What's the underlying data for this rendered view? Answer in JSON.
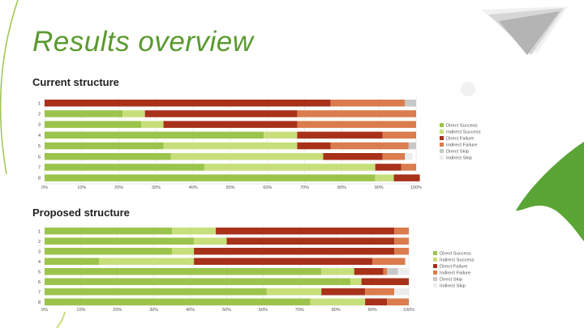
{
  "slide": {
    "title": "Results overview"
  },
  "colors": {
    "direct_success": "#9cc44c",
    "indirect_success": "#c7df7b",
    "direct_failure": "#a8311a",
    "indirect_failure": "#da7c4d",
    "direct_skip": "#c8c8c8",
    "indirect_skip": "#ececec",
    "accent_green": "#5a9a2e"
  },
  "chart_data": [
    {
      "type": "bar",
      "orientation": "horizontal",
      "stacked": true,
      "title": "Current structure",
      "categories": [
        "1",
        "2",
        "3",
        "4",
        "5",
        "6",
        "7",
        "8"
      ],
      "xlim": [
        0,
        100
      ],
      "x_ticks": [
        "0%",
        "10%",
        "20%",
        "30%",
        "40%",
        "50%",
        "60%",
        "70%",
        "80%",
        "90%",
        "100%"
      ],
      "grid": true,
      "legend": "right",
      "series": [
        {
          "name": "Direct Success",
          "values": [
            0,
            21,
            26,
            59,
            32,
            34,
            43,
            89
          ]
        },
        {
          "name": "Indirect Success",
          "values": [
            0,
            6,
            6,
            9,
            36,
            41,
            46,
            5
          ]
        },
        {
          "name": "Direct Failure",
          "values": [
            77,
            41,
            36,
            23,
            9,
            16,
            7,
            7
          ]
        },
        {
          "name": "Indirect Failure",
          "values": [
            20,
            32,
            32,
            9,
            21,
            6,
            4,
            0
          ]
        },
        {
          "name": "Direct Skip",
          "values": [
            3,
            0,
            0,
            0,
            2,
            0,
            0,
            0
          ]
        },
        {
          "name": "Indirect Skip",
          "values": [
            0,
            0,
            0,
            0,
            0,
            2,
            0,
            0
          ]
        }
      ]
    },
    {
      "type": "bar",
      "orientation": "horizontal",
      "stacked": true,
      "title": "Proposed structure",
      "categories": [
        "1",
        "2",
        "3",
        "4",
        "5",
        "6",
        "7",
        "8"
      ],
      "xlim": [
        0,
        100
      ],
      "x_ticks": [
        "0%",
        "10%",
        "20%",
        "30%",
        "40%",
        "50%",
        "60%",
        "70%",
        "80%",
        "90%",
        "100%"
      ],
      "grid": true,
      "legend": "right",
      "series": [
        {
          "name": "Direct Success",
          "values": [
            35,
            41,
            35,
            15,
            76,
            84,
            61,
            73
          ]
        },
        {
          "name": "Indirect Success",
          "values": [
            12,
            9,
            6,
            26,
            9,
            3,
            15,
            15
          ]
        },
        {
          "name": "Direct Failure",
          "values": [
            49,
            46,
            55,
            49,
            8,
            13,
            12,
            6
          ]
        },
        {
          "name": "Indirect Failure",
          "values": [
            4,
            4,
            4,
            9,
            1,
            0,
            8,
            6
          ]
        },
        {
          "name": "Direct Skip",
          "values": [
            0,
            0,
            0,
            0,
            3,
            0,
            0,
            0
          ]
        },
        {
          "name": "Indirect Skip",
          "values": [
            0,
            0,
            0,
            0,
            3,
            0,
            4,
            0
          ]
        }
      ]
    }
  ]
}
